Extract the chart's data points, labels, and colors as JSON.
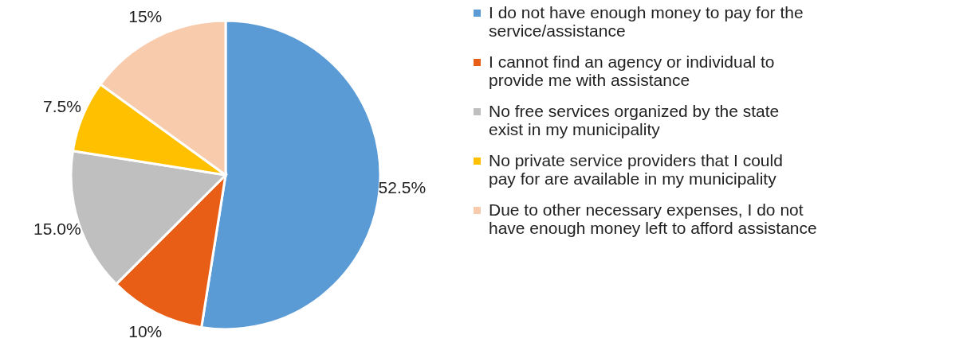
{
  "chart_data": {
    "type": "pie",
    "categories": [
      "I do not have enough money to pay for the service/assistance",
      "I cannot find an agency or individual to provide me with assistance",
      "No free services organized by the state exist in my municipality",
      "No private service providers that I could pay for are available in my municipality",
      "Due to other necessary expenses, I do not have enough money left to afford assistance"
    ],
    "values": [
      52.5,
      10,
      15,
      7.5,
      15
    ],
    "value_labels": [
      "52.5%",
      "10%",
      "15.0%",
      "7.5%",
      "15%"
    ],
    "colors": [
      "#5b9bd5",
      "#e85e17",
      "#bfbfbf",
      "#ffc000",
      "#f8cbad"
    ],
    "legend": "right"
  }
}
